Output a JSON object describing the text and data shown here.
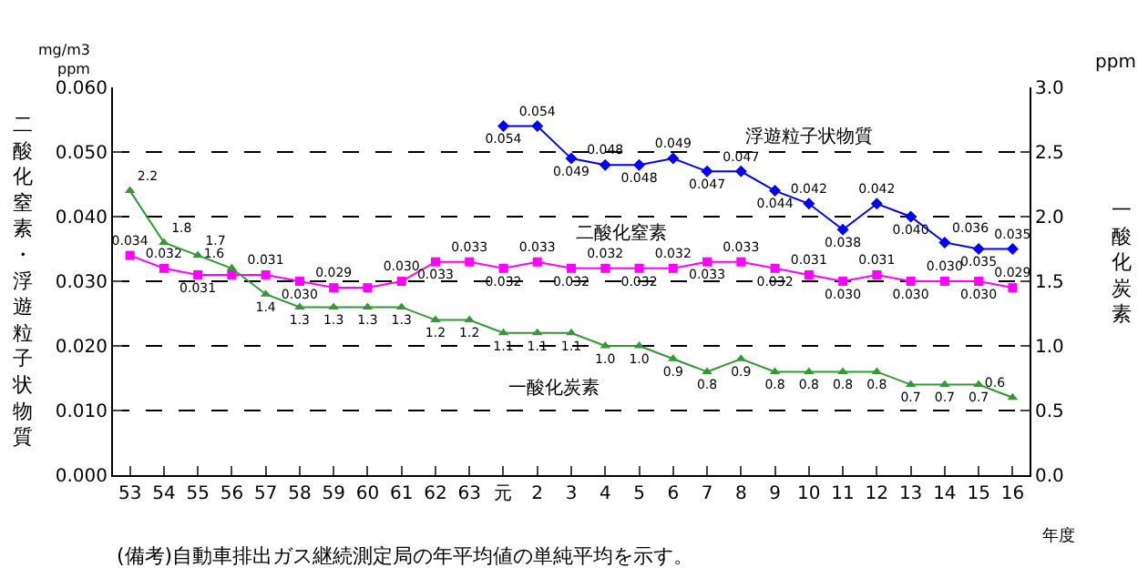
{
  "chart_data": {
    "type": "line",
    "ylabel": "二酸化窒素・浮遊粒子状物質",
    "y2label": "一酸化炭素",
    "xlabel": "年度",
    "categories": [
      "53",
      "54",
      "55",
      "56",
      "57",
      "58",
      "59",
      "60",
      "61",
      "62",
      "63",
      "元",
      "2",
      "3",
      "4",
      "5",
      "6",
      "7",
      "8",
      "9",
      "10",
      "11",
      "12",
      "13",
      "14",
      "15",
      "16"
    ],
    "series": [
      {
        "name": "浮遊粒子状物質",
        "color": "#0000ff",
        "marker": "diamond",
        "values": [
          null,
          null,
          null,
          null,
          null,
          null,
          null,
          null,
          null,
          null,
          null,
          0.054,
          0.054,
          0.049,
          0.048,
          0.048,
          0.049,
          0.047,
          0.047,
          0.044,
          0.042,
          0.038,
          0.042,
          0.04,
          0.036,
          0.035,
          0.035
        ],
        "value_labels": [
          null,
          null,
          null,
          null,
          null,
          null,
          null,
          null,
          null,
          null,
          null,
          "0.054",
          "0.054",
          "0.049",
          "0.048",
          "0.048",
          "0.049",
          "0.047",
          "0.047",
          "0.044",
          "0.042",
          "0.038",
          "0.042",
          "0.040",
          "0.036",
          "0.035",
          "0.035"
        ]
      },
      {
        "name": "二酸化窒素",
        "color": "#ff00ff",
        "marker": "square",
        "values": [
          0.034,
          0.032,
          0.031,
          0.031,
          0.031,
          0.03,
          0.029,
          0.029,
          0.03,
          0.033,
          0.033,
          0.032,
          0.033,
          0.032,
          0.032,
          0.032,
          0.032,
          0.033,
          0.033,
          0.032,
          0.031,
          0.03,
          0.031,
          0.03,
          0.03,
          0.03,
          0.029
        ],
        "value_labels": [
          "0.034",
          "0.032",
          "0.031",
          null,
          "0.031",
          "0.030",
          "0.029",
          null,
          "0.030",
          "0.033",
          "0.033",
          "0.032",
          "0.033",
          "0.032",
          "0.032",
          "0.032",
          "0.032",
          "0.033",
          "0.033",
          "0.032",
          "0.031",
          "0.030",
          "0.031",
          "0.030",
          "0.030",
          "0.030",
          "0.029"
        ]
      },
      {
        "name": "一酸化炭素",
        "color": "#339933",
        "marker": "triangle",
        "axis": "y2",
        "values": [
          2.2,
          1.8,
          1.7,
          1.6,
          1.4,
          1.3,
          1.3,
          1.3,
          1.3,
          1.2,
          1.2,
          1.1,
          1.1,
          1.1,
          1.0,
          1.0,
          0.9,
          0.8,
          0.9,
          0.8,
          0.8,
          0.8,
          0.8,
          0.7,
          0.7,
          0.7,
          0.6
        ],
        "value_labels": [
          "2.2",
          "1.8",
          "1.7",
          "1.6",
          "1.4",
          "1.3",
          "1.3",
          "1.3",
          "1.3",
          "1.2",
          "1.2",
          "1.1",
          "1.1",
          "1.1",
          "1.0",
          "1.0",
          "0.9",
          "0.8",
          "0.9",
          "0.8",
          "0.8",
          "0.8",
          "0.8",
          "0.7",
          "0.7",
          "0.7",
          "0.6"
        ]
      }
    ],
    "ylim": [
      0,
      0.06
    ],
    "yticks": [
      {
        "value": 0,
        "label": "0.000"
      },
      {
        "value": 0.01,
        "label": "0.010"
      },
      {
        "value": 0.02,
        "label": "0.020"
      },
      {
        "value": 0.03,
        "label": "0.030"
      },
      {
        "value": 0.04,
        "label": "0.040"
      },
      {
        "value": 0.05,
        "label": "0.050"
      },
      {
        "value": 0.06,
        "label": "0.060"
      }
    ],
    "y2lim": [
      0,
      3
    ],
    "y2ticks": [
      {
        "value": 0,
        "label": "0.0"
      },
      {
        "value": 0.5,
        "label": "0.5"
      },
      {
        "value": 1,
        "label": "1.0"
      },
      {
        "value": 1.5,
        "label": "1.5"
      },
      {
        "value": 2,
        "label": "2.0"
      },
      {
        "value": 2.5,
        "label": "2.5"
      },
      {
        "value": 3,
        "label": "3.0"
      }
    ],
    "grid": "y",
    "legend": false,
    "line_style": "solid",
    "annotations": [
      "mg/m3\nppm",
      "ppm",
      "(備考)自動車排出ガス継続測定局の年平均値の単純平均を示す。"
    ]
  }
}
